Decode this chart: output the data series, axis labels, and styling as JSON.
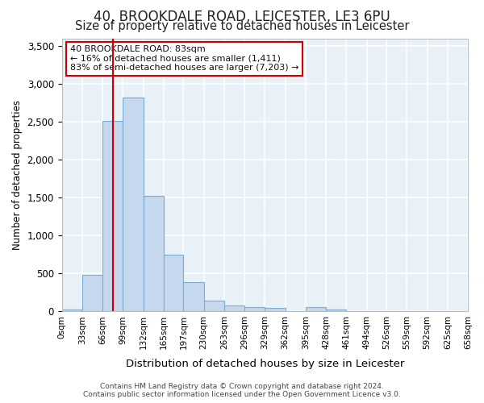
{
  "title_line1": "40, BROOKDALE ROAD, LEICESTER, LE3 6PU",
  "title_line2": "Size of property relative to detached houses in Leicester",
  "xlabel": "Distribution of detached houses by size in Leicester",
  "ylabel": "Number of detached properties",
  "annotation_line1": "40 BROOKDALE ROAD: 83sqm",
  "annotation_line2": "← 16% of detached houses are smaller (1,411)",
  "annotation_line3": "83% of semi-detached houses are larger (7,203) →",
  "footer_line1": "Contains HM Land Registry data © Crown copyright and database right 2024.",
  "footer_line2": "Contains public sector information licensed under the Open Government Licence v3.0.",
  "bin_edges": [
    0,
    33,
    66,
    99,
    132,
    165,
    197,
    230,
    263,
    296,
    329,
    362,
    395,
    428,
    461,
    494,
    526,
    559,
    592,
    625,
    658
  ],
  "bar_values": [
    25,
    480,
    2510,
    2820,
    1520,
    750,
    385,
    140,
    75,
    55,
    50,
    0,
    55,
    30,
    0,
    0,
    0,
    0,
    0,
    0
  ],
  "bar_color": "#c5d8ee",
  "bar_edge_color": "#7badd4",
  "red_line_x": 83,
  "ylim": [
    0,
    3600
  ],
  "yticks": [
    0,
    500,
    1000,
    1500,
    2000,
    2500,
    3000,
    3500
  ],
  "background_color": "#ffffff",
  "plot_bg_color": "#e8f0f8",
  "grid_color": "#ffffff",
  "annotation_box_color": "#ffffff",
  "annotation_border_color": "#cc0000",
  "red_line_color": "#cc0000",
  "title1_fontsize": 12,
  "title2_fontsize": 10.5,
  "tick_labels": [
    "0sqm",
    "33sqm",
    "66sqm",
    "99sqm",
    "132sqm",
    "165sqm",
    "197sqm",
    "230sqm",
    "263sqm",
    "296sqm",
    "329sqm",
    "362sqm",
    "395sqm",
    "428sqm",
    "461sqm",
    "494sqm",
    "526sqm",
    "559sqm",
    "592sqm",
    "625sqm",
    "658sqm"
  ]
}
